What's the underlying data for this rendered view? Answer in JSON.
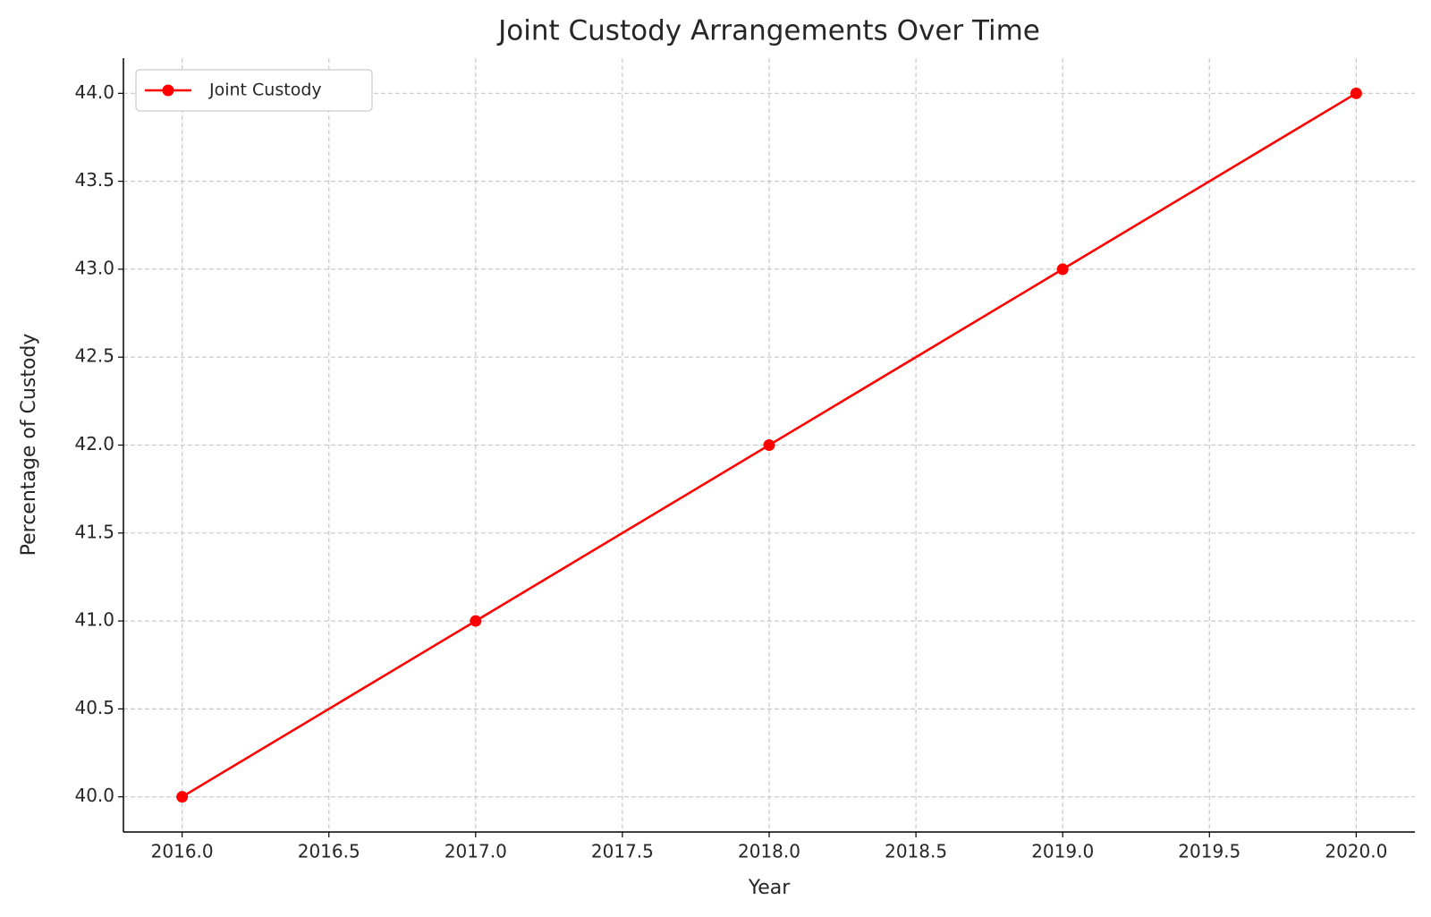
{
  "chart_data": {
    "type": "line",
    "title": "Joint Custody Arrangements Over Time",
    "x_label": "Year",
    "y_label": "Percentage of Custody",
    "x": [
      2016,
      2017,
      2018,
      2019,
      2020
    ],
    "series": [
      {
        "name": "Joint Custody",
        "color": "#ff0000",
        "values": [
          40,
          41,
          42,
          43,
          44
        ]
      }
    ],
    "xlim": [
      2015.8,
      2020.2
    ],
    "xticks": [
      {
        "value": 2016,
        "label": "2016.0"
      },
      2016.5,
      {
        "value": 2017,
        "label": "2017.0"
      },
      2017.5,
      {
        "value": 2018,
        "label": "2018.0"
      },
      2018.5,
      {
        "value": 2019,
        "label": "2019.0"
      },
      2019.5,
      {
        "value": 2020,
        "label": "2020.0"
      }
    ],
    "ylim": [
      39.8,
      44.2
    ],
    "yticks": [
      {
        "value": 40,
        "label": "40.0"
      },
      40.5,
      {
        "value": 41,
        "label": "41.0"
      },
      41.5,
      {
        "value": 42,
        "label": "42.0"
      },
      42.5,
      {
        "value": 43,
        "label": "43.0"
      },
      43.5,
      {
        "value": 44,
        "label": "44.0"
      }
    ],
    "grid": true,
    "legend": "upper left"
  }
}
